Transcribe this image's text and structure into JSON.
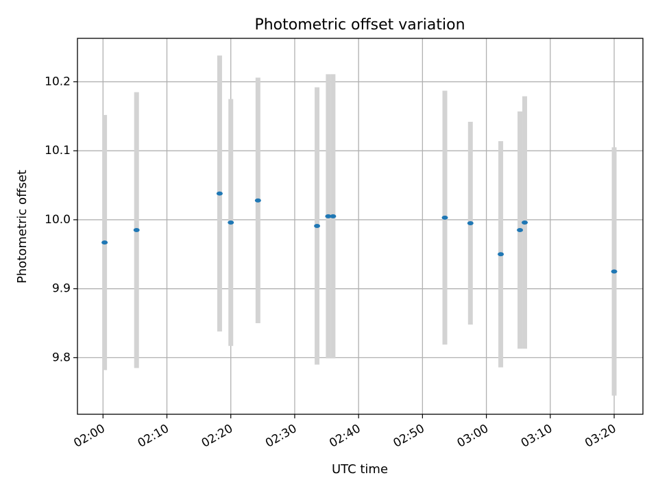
{
  "chart_data": {
    "type": "scatter",
    "title": "Photometric offset variation",
    "xlabel": "UTC time",
    "ylabel": "Photometric offset",
    "xlim": [
      "01:56:00",
      "03:24:30"
    ],
    "ylim": [
      9.718,
      10.263
    ],
    "grid": true,
    "x_ticks": [
      "02:00",
      "02:10",
      "02:20",
      "02:30",
      "02:40",
      "02:50",
      "03:00",
      "03:10",
      "03:20"
    ],
    "y_ticks": [
      "9.8",
      "9.9",
      "10.0",
      "10.1",
      "10.2"
    ],
    "colors": {
      "points": "#1f77b4",
      "error_bars": "#d3d3d3",
      "grid": "#b0b0b0"
    },
    "series": [
      {
        "points": [
          {
            "x": "02:00:15",
            "y": 9.967,
            "err": 0.185
          },
          {
            "x": "02:05:15",
            "y": 9.985,
            "err": 0.2
          },
          {
            "x": "02:18:15",
            "y": 10.038,
            "err": 0.2
          },
          {
            "x": "02:20:00",
            "y": 9.996,
            "err": 0.179
          },
          {
            "x": "02:24:15",
            "y": 10.028,
            "err": 0.178
          },
          {
            "x": "02:33:30",
            "y": 9.991,
            "err": 0.201
          },
          {
            "x": "02:35:15",
            "y": 10.005,
            "err": 0.206
          },
          {
            "x": "02:36:00",
            "y": 10.005,
            "err": 0.206
          },
          {
            "x": "02:53:30",
            "y": 10.003,
            "err": 0.184
          },
          {
            "x": "02:57:30",
            "y": 9.995,
            "err": 0.147
          },
          {
            "x": "03:02:15",
            "y": 9.95,
            "err": 0.164
          },
          {
            "x": "03:05:15",
            "y": 9.985,
            "err": 0.172
          },
          {
            "x": "03:06:00",
            "y": 9.996,
            "err": 0.183
          },
          {
            "x": "03:20:00",
            "y": 9.925,
            "err": 0.18
          }
        ]
      }
    ]
  }
}
